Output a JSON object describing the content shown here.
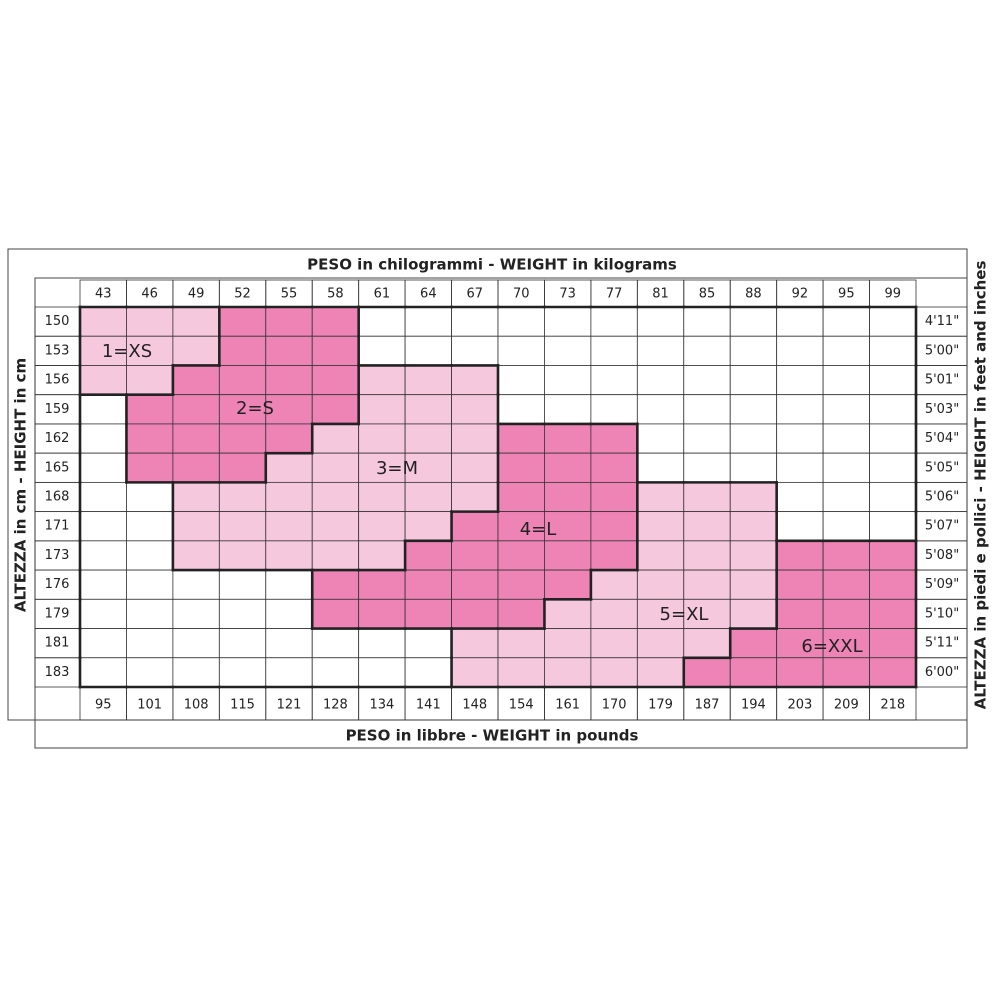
{
  "header": {
    "top_title": "PESO in chilogrammi -  WEIGHT in kilograms",
    "bottom_title": "PESO in libbre -  WEIGHT in pounds",
    "left_title": "ALTEZZA in cm  -  HEIGHT in cm",
    "right_title": "ALTEZZA in piedi e pollici - HEIGHT in feet and inches"
  },
  "kg": [
    43,
    46,
    49,
    52,
    55,
    58,
    61,
    64,
    67,
    70,
    73,
    77,
    81,
    85,
    88,
    92,
    95,
    99
  ],
  "lb": [
    95,
    101,
    108,
    115,
    121,
    128,
    134,
    141,
    148,
    154,
    161,
    170,
    179,
    187,
    194,
    203,
    209,
    218
  ],
  "cm": [
    150,
    153,
    156,
    159,
    162,
    165,
    168,
    171,
    173,
    176,
    179,
    181,
    183
  ],
  "ft": [
    "4'11\"",
    "5'00\"",
    "5'01\"",
    "5'03\"",
    "5'04\"",
    "5'05\"",
    "5'06\"",
    "5'07\"",
    "5'08\"",
    "5'09\"",
    "5'10\"",
    "5'11\"",
    "6'00\""
  ],
  "sizes": [
    "1=XS",
    "2=S",
    "3=M",
    "4=L",
    "5=XL",
    "6=XXL"
  ]
}
